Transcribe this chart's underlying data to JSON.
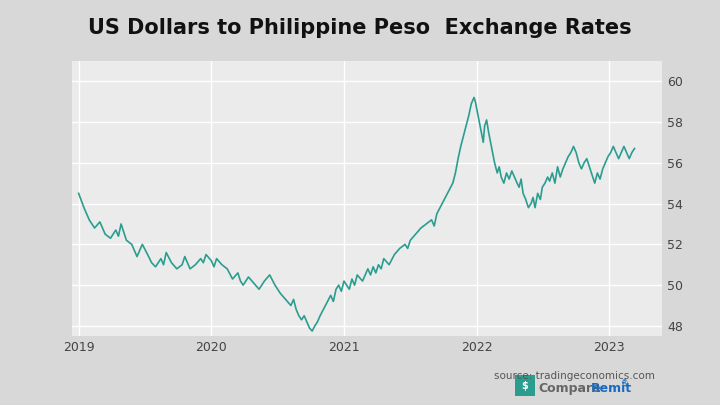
{
  "title": "US Dollars to Philippine Peso  Exchange Rates",
  "source_text": "source: tradingeconomics.com",
  "line_color": "#2a9d8f",
  "background_color": "#d8d8d8",
  "plot_background_color": "#ebebeb",
  "ylim": [
    47.5,
    61.0
  ],
  "yticks": [
    48,
    50,
    52,
    54,
    56,
    58,
    60
  ],
  "grid_color": "#ffffff",
  "title_fontsize": 15,
  "line_width": 1.2,
  "data_points": [
    [
      0.0,
      54.5
    ],
    [
      0.008,
      53.8
    ],
    [
      0.016,
      53.2
    ],
    [
      0.024,
      52.8
    ],
    [
      0.032,
      53.1
    ],
    [
      0.04,
      52.5
    ],
    [
      0.048,
      52.3
    ],
    [
      0.056,
      52.7
    ],
    [
      0.06,
      52.4
    ],
    [
      0.064,
      53.0
    ],
    [
      0.072,
      52.2
    ],
    [
      0.08,
      52.0
    ],
    [
      0.088,
      51.4
    ],
    [
      0.092,
      51.7
    ],
    [
      0.096,
      52.0
    ],
    [
      0.104,
      51.5
    ],
    [
      0.11,
      51.1
    ],
    [
      0.116,
      50.9
    ],
    [
      0.124,
      51.3
    ],
    [
      0.128,
      51.0
    ],
    [
      0.132,
      51.6
    ],
    [
      0.14,
      51.1
    ],
    [
      0.148,
      50.8
    ],
    [
      0.156,
      51.0
    ],
    [
      0.16,
      51.4
    ],
    [
      0.164,
      51.1
    ],
    [
      0.168,
      50.8
    ],
    [
      0.176,
      51.0
    ],
    [
      0.184,
      51.3
    ],
    [
      0.188,
      51.1
    ],
    [
      0.192,
      51.5
    ],
    [
      0.2,
      51.2
    ],
    [
      0.204,
      50.9
    ],
    [
      0.208,
      51.3
    ],
    [
      0.216,
      51.0
    ],
    [
      0.224,
      50.8
    ],
    [
      0.232,
      50.3
    ],
    [
      0.24,
      50.6
    ],
    [
      0.244,
      50.2
    ],
    [
      0.248,
      50.0
    ],
    [
      0.256,
      50.4
    ],
    [
      0.264,
      50.1
    ],
    [
      0.272,
      49.8
    ],
    [
      0.28,
      50.2
    ],
    [
      0.288,
      50.5
    ],
    [
      0.296,
      50.0
    ],
    [
      0.304,
      49.6
    ],
    [
      0.312,
      49.3
    ],
    [
      0.32,
      49.0
    ],
    [
      0.324,
      49.3
    ],
    [
      0.328,
      48.8
    ],
    [
      0.332,
      48.5
    ],
    [
      0.336,
      48.3
    ],
    [
      0.34,
      48.5
    ],
    [
      0.344,
      48.2
    ],
    [
      0.348,
      47.9
    ],
    [
      0.352,
      47.75
    ],
    [
      0.356,
      48.0
    ],
    [
      0.36,
      48.2
    ],
    [
      0.364,
      48.5
    ],
    [
      0.372,
      49.0
    ],
    [
      0.38,
      49.5
    ],
    [
      0.384,
      49.2
    ],
    [
      0.388,
      49.8
    ],
    [
      0.392,
      50.0
    ],
    [
      0.396,
      49.7
    ],
    [
      0.4,
      50.2
    ],
    [
      0.404,
      50.0
    ],
    [
      0.408,
      49.8
    ],
    [
      0.412,
      50.3
    ],
    [
      0.416,
      50.0
    ],
    [
      0.42,
      50.5
    ],
    [
      0.428,
      50.2
    ],
    [
      0.432,
      50.5
    ],
    [
      0.436,
      50.8
    ],
    [
      0.44,
      50.5
    ],
    [
      0.444,
      50.9
    ],
    [
      0.448,
      50.6
    ],
    [
      0.452,
      51.0
    ],
    [
      0.456,
      50.8
    ],
    [
      0.46,
      51.3
    ],
    [
      0.468,
      51.0
    ],
    [
      0.476,
      51.5
    ],
    [
      0.484,
      51.8
    ],
    [
      0.492,
      52.0
    ],
    [
      0.496,
      51.8
    ],
    [
      0.5,
      52.2
    ],
    [
      0.508,
      52.5
    ],
    [
      0.516,
      52.8
    ],
    [
      0.524,
      53.0
    ],
    [
      0.532,
      53.2
    ],
    [
      0.536,
      52.9
    ],
    [
      0.54,
      53.5
    ],
    [
      0.548,
      54.0
    ],
    [
      0.556,
      54.5
    ],
    [
      0.564,
      55.0
    ],
    [
      0.568,
      55.5
    ],
    [
      0.572,
      56.2
    ],
    [
      0.576,
      56.8
    ],
    [
      0.58,
      57.3
    ],
    [
      0.584,
      57.8
    ],
    [
      0.588,
      58.3
    ],
    [
      0.592,
      58.9
    ],
    [
      0.596,
      59.2
    ],
    [
      0.598,
      59.0
    ],
    [
      0.601,
      58.5
    ],
    [
      0.604,
      58.0
    ],
    [
      0.607,
      57.5
    ],
    [
      0.61,
      57.0
    ],
    [
      0.612,
      57.8
    ],
    [
      0.615,
      58.1
    ],
    [
      0.618,
      57.5
    ],
    [
      0.621,
      57.0
    ],
    [
      0.624,
      56.5
    ],
    [
      0.627,
      56.0
    ],
    [
      0.631,
      55.5
    ],
    [
      0.634,
      55.8
    ],
    [
      0.637,
      55.3
    ],
    [
      0.641,
      55.0
    ],
    [
      0.645,
      55.5
    ],
    [
      0.649,
      55.2
    ],
    [
      0.653,
      55.6
    ],
    [
      0.657,
      55.3
    ],
    [
      0.661,
      55.0
    ],
    [
      0.664,
      54.8
    ],
    [
      0.667,
      55.2
    ],
    [
      0.67,
      54.5
    ],
    [
      0.674,
      54.2
    ],
    [
      0.678,
      53.8
    ],
    [
      0.682,
      54.0
    ],
    [
      0.685,
      54.3
    ],
    [
      0.688,
      53.8
    ],
    [
      0.692,
      54.5
    ],
    [
      0.696,
      54.2
    ],
    [
      0.699,
      54.8
    ],
    [
      0.703,
      55.0
    ],
    [
      0.707,
      55.3
    ],
    [
      0.71,
      55.1
    ],
    [
      0.714,
      55.5
    ],
    [
      0.718,
      55.0
    ],
    [
      0.722,
      55.8
    ],
    [
      0.726,
      55.3
    ],
    [
      0.73,
      55.7
    ],
    [
      0.734,
      56.0
    ],
    [
      0.738,
      56.3
    ],
    [
      0.742,
      56.5
    ],
    [
      0.746,
      56.8
    ],
    [
      0.75,
      56.5
    ],
    [
      0.754,
      56.0
    ],
    [
      0.758,
      55.7
    ],
    [
      0.762,
      56.0
    ],
    [
      0.766,
      56.2
    ],
    [
      0.77,
      55.8
    ],
    [
      0.774,
      55.4
    ],
    [
      0.778,
      55.0
    ],
    [
      0.782,
      55.5
    ],
    [
      0.786,
      55.2
    ],
    [
      0.79,
      55.7
    ],
    [
      0.794,
      56.0
    ],
    [
      0.798,
      56.3
    ],
    [
      0.802,
      56.5
    ],
    [
      0.806,
      56.8
    ],
    [
      0.81,
      56.5
    ],
    [
      0.814,
      56.2
    ],
    [
      0.818,
      56.5
    ],
    [
      0.822,
      56.8
    ],
    [
      0.826,
      56.5
    ],
    [
      0.83,
      56.2
    ],
    [
      0.834,
      56.5
    ],
    [
      0.838,
      56.7
    ]
  ],
  "xlim": [
    -0.01,
    0.88
  ],
  "xtick_positions": [
    0.0,
    0.2,
    0.4,
    0.6,
    0.8
  ],
  "xtick_labels": [
    "2019",
    "2020",
    "2021",
    "2022",
    "2023"
  ]
}
